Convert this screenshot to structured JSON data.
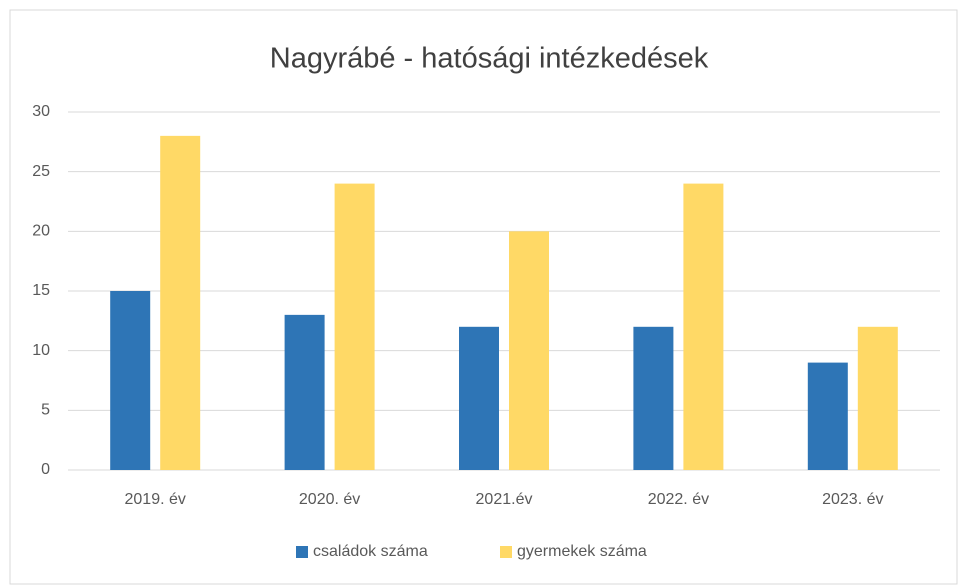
{
  "chart_data": {
    "type": "bar",
    "title": "Nagyrábé - hatósági intézkedések",
    "categories": [
      "2019. év",
      "2020. év",
      "2021.év",
      "2022. év",
      "2023. év"
    ],
    "series": [
      {
        "name": "családok száma",
        "color": "#2e75b6",
        "values": [
          15,
          13,
          12,
          12,
          9
        ]
      },
      {
        "name": "gyermekek száma",
        "color": "#ffd966",
        "values": [
          28,
          24,
          20,
          24,
          12
        ]
      }
    ],
    "ylim": [
      0,
      30
    ],
    "yticks": [
      0,
      5,
      10,
      15,
      20,
      25,
      30
    ],
    "grid": true,
    "legend": "bottom"
  }
}
